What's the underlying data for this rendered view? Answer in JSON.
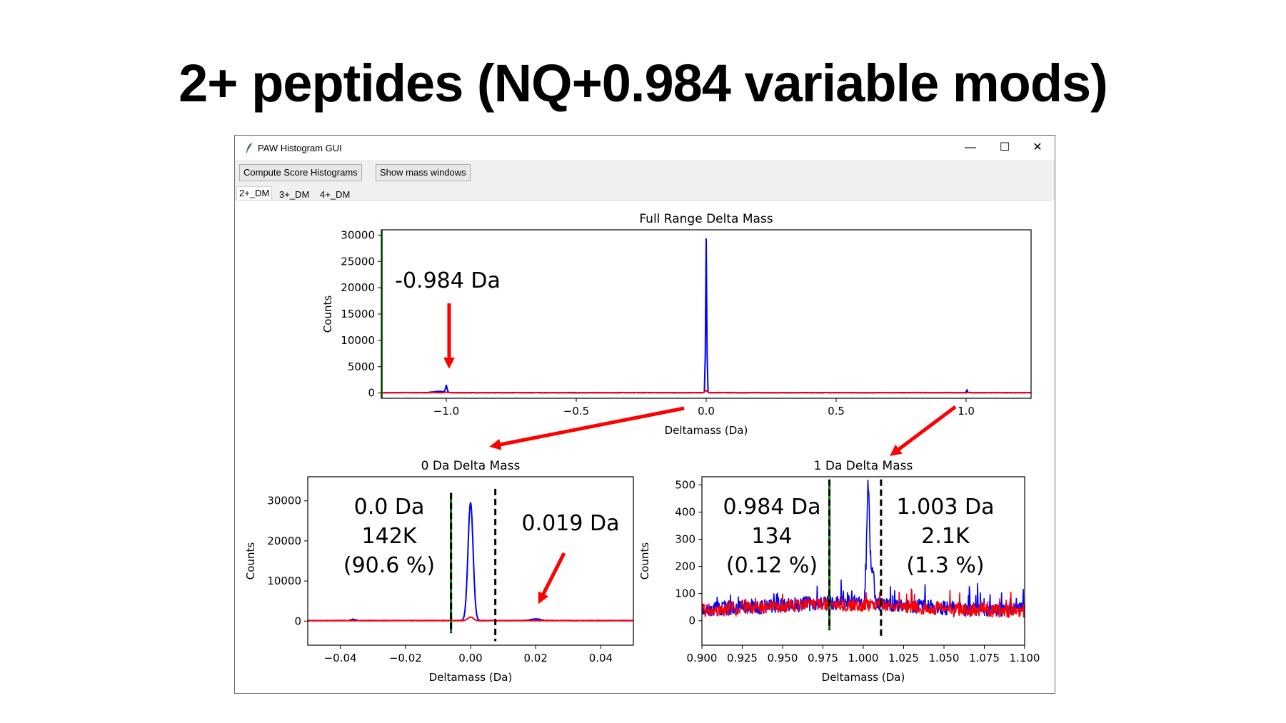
{
  "slide": {
    "title": "2+ peptides (NQ+0.984 variable mods)"
  },
  "window": {
    "title": "PAW Histogram GUI",
    "buttons": {
      "compute": "Compute Score Histograms",
      "mass_windows": "Show mass windows"
    },
    "tabs": [
      "2+_DM",
      "3+_DM",
      "4+_DM"
    ],
    "controls": {
      "minimize": "—",
      "maximize": "☐",
      "close": "✕"
    }
  },
  "colors": {
    "blue": "#0000ff",
    "red": "#ff0000",
    "green": "#008000",
    "arrow": "#ff0000"
  },
  "annotations": {
    "full_peak": "-0.984 Da",
    "zero_left": [
      "0.0 Da",
      "142K",
      "(90.6 %)"
    ],
    "zero_right": "0.019 Da",
    "one_left": [
      "0.984 Da",
      "134",
      "(0.12 %)"
    ],
    "one_right": [
      "1.003 Da",
      "2.1K",
      "(1.3 %)"
    ]
  },
  "chart_data": [
    {
      "type": "line",
      "title": "Full Range Delta Mass",
      "xlabel": "Deltamass (Da)",
      "ylabel": "Counts",
      "xlim": [
        -1.25,
        1.25
      ],
      "ylim": [
        -1000,
        31000
      ],
      "xticks": [
        -1.0,
        -0.5,
        0.0,
        0.5,
        1.0
      ],
      "xtick_labels": [
        "−1.0",
        "−0.5",
        "0.0",
        "0.5",
        "1.0"
      ],
      "yticks": [
        0,
        5000,
        10000,
        15000,
        20000,
        25000,
        30000
      ],
      "ytick_labels": [
        "0",
        "5000",
        "10000",
        "15000",
        "20000",
        "25000",
        "30000"
      ],
      "vlines": [
        {
          "x": -1.25,
          "color": "green"
        }
      ],
      "series": [
        {
          "color": "blue",
          "baseline": 60,
          "peaks": [
            {
              "x": -1.0,
              "y": 1400,
              "w": 0.004
            },
            {
              "x": -1.03,
              "y": 250,
              "w": 0.03
            },
            {
              "x": 0.0,
              "y": 29300,
              "w": 0.003
            },
            {
              "x": 1.003,
              "y": 500,
              "w": 0.003
            }
          ]
        },
        {
          "color": "red",
          "baseline": 60,
          "peaks": [
            {
              "x": 0.0,
              "y": 400,
              "w": 0.006
            },
            {
              "x": -1.0,
              "y": 120,
              "w": 0.01
            }
          ]
        }
      ]
    },
    {
      "type": "line",
      "title": "0 Da Delta Mass",
      "xlabel": "Deltamass (Da)",
      "ylabel": "Counts",
      "xlim": [
        -0.05,
        0.05
      ],
      "ylim": [
        -6000,
        36000
      ],
      "xticks": [
        -0.04,
        -0.02,
        0.0,
        0.02,
        0.04
      ],
      "xtick_labels": [
        "−0.04",
        "−0.02",
        "0.00",
        "0.02",
        "0.04"
      ],
      "yticks": [
        0,
        10000,
        20000,
        30000
      ],
      "ytick_labels": [
        "0",
        "10000",
        "20000",
        "30000"
      ],
      "vlines": [
        {
          "x": -0.006,
          "color": "green-black",
          "from": -3000,
          "to": 32000
        },
        {
          "x": 0.0076,
          "color": "black",
          "from": -5000,
          "to": 33000
        }
      ],
      "series": [
        {
          "color": "blue",
          "baseline": 150,
          "peaks": [
            {
              "x": 0.0,
              "y": 29400,
              "w": 0.0011
            },
            {
              "x": 0.02,
              "y": 400,
              "w": 0.002
            },
            {
              "x": -0.036,
              "y": 300,
              "w": 0.001
            }
          ]
        },
        {
          "color": "red",
          "baseline": 120,
          "peaks": [
            {
              "x": 0.0,
              "y": 900,
              "w": 0.0012
            }
          ]
        }
      ]
    },
    {
      "type": "line",
      "title": "1 Da Delta Mass",
      "xlabel": "Deltamass (Da)",
      "ylabel": "Counts",
      "xlim": [
        0.9,
        1.1
      ],
      "ylim": [
        -90,
        530
      ],
      "xticks": [
        0.9,
        0.925,
        0.95,
        0.975,
        1.0,
        1.025,
        1.05,
        1.075,
        1.1
      ],
      "xtick_labels": [
        "0.900",
        "0.925",
        "0.950",
        "0.975",
        "1.000",
        "1.025",
        "1.050",
        "1.075",
        "1.100"
      ],
      "yticks": [
        0,
        100,
        200,
        300,
        400,
        500
      ],
      "ytick_labels": [
        "0",
        "100",
        "200",
        "300",
        "400",
        "500"
      ],
      "vlines": [
        {
          "x": 0.979,
          "color": "green-black",
          "from": -35,
          "to": 520
        },
        {
          "x": 1.011,
          "color": "black",
          "from": -60,
          "to": 520
        }
      ],
      "series": [
        {
          "color": "blue",
          "noisy": true,
          "peaks": [
            {
              "x": 1.003,
              "y": 430,
              "w": 0.0012
            }
          ]
        },
        {
          "color": "red",
          "noisy": true,
          "peaks": []
        }
      ]
    }
  ]
}
